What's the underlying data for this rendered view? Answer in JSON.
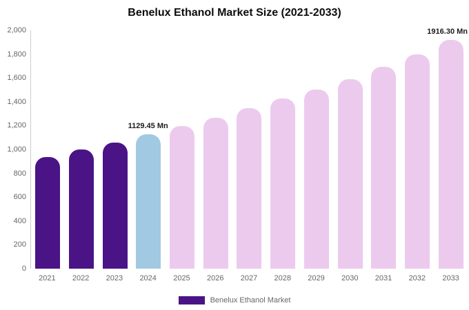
{
  "title": "Benelux Ethanol Market Size (2021-2033)",
  "legend": {
    "label": "Benelux Ethanol Market"
  },
  "chart_data": {
    "type": "bar",
    "title": "Benelux Ethanol Market Size (2021-2033)",
    "xlabel": "",
    "ylabel": "",
    "ylim": [
      0,
      2000
    ],
    "ytick_step": 200,
    "grid": false,
    "legend_position": "bottom",
    "legend_entries": [
      "Benelux Ethanol Market"
    ],
    "categories": [
      "2021",
      "2022",
      "2023",
      "2024",
      "2025",
      "2026",
      "2027",
      "2028",
      "2029",
      "2030",
      "2031",
      "2032",
      "2033"
    ],
    "values": [
      935,
      1000,
      1060,
      1129.45,
      1195,
      1265,
      1345,
      1425,
      1505,
      1590,
      1695,
      1800,
      1916.3
    ],
    "unit": "Mn",
    "colors": {
      "dark": "#4a1486",
      "blue": "#a1c9e1",
      "pink": "#eccaed"
    },
    "color_by_index": [
      "dark",
      "dark",
      "dark",
      "blue",
      "pink",
      "pink",
      "pink",
      "pink",
      "pink",
      "pink",
      "pink",
      "pink",
      "pink"
    ],
    "annotations": [
      {
        "index": 3,
        "text": "1129.45 Mn",
        "align": "center"
      },
      {
        "index": 12,
        "text": "1916.30 Mn",
        "align": "right"
      }
    ]
  }
}
